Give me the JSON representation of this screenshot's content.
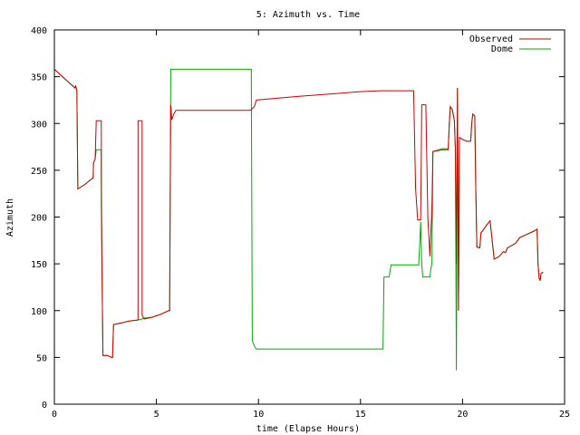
{
  "chart_data": {
    "type": "line",
    "title": "5: Azimuth vs. Time",
    "xlabel": "time (Elapse Hours)",
    "ylabel": "Azimuth",
    "xlim": [
      0,
      25
    ],
    "ylim": [
      0,
      400
    ],
    "xticks": [
      0,
      5,
      10,
      15,
      20,
      25
    ],
    "yticks": [
      0,
      50,
      100,
      150,
      200,
      250,
      300,
      350,
      400
    ],
    "xtick_labels": [
      "0",
      "5",
      "10",
      "15",
      "20",
      "25"
    ],
    "ytick_labels": [
      "0",
      "50",
      "100",
      "150",
      "200",
      "250",
      "300",
      "350",
      "400"
    ],
    "grid": false,
    "legend": "top-right",
    "series": [
      {
        "name": "Observed",
        "color": "#cc0000",
        "points": [
          [
            0.0,
            358
          ],
          [
            0.3,
            352
          ],
          [
            0.6,
            346
          ],
          [
            0.9,
            340
          ],
          [
            1.0,
            338
          ],
          [
            1.05,
            340
          ],
          [
            1.1,
            335
          ],
          [
            1.15,
            230
          ],
          [
            1.5,
            235
          ],
          [
            1.9,
            242
          ],
          [
            1.92,
            258
          ],
          [
            2.0,
            262
          ],
          [
            2.05,
            303
          ],
          [
            2.3,
            303
          ],
          [
            2.3,
            215
          ],
          [
            2.35,
            112
          ],
          [
            2.38,
            52
          ],
          [
            2.6,
            52
          ],
          [
            2.8,
            50
          ],
          [
            2.85,
            50
          ],
          [
            2.9,
            85
          ],
          [
            3.3,
            87
          ],
          [
            3.7,
            89
          ],
          [
            4.1,
            90
          ],
          [
            4.1,
            303
          ],
          [
            4.3,
            303
          ],
          [
            4.3,
            95
          ],
          [
            4.4,
            91
          ],
          [
            4.8,
            93
          ],
          [
            5.2,
            96
          ],
          [
            5.6,
            100
          ],
          [
            5.65,
            100
          ],
          [
            5.7,
            320
          ],
          [
            5.75,
            304
          ],
          [
            5.85,
            310
          ],
          [
            5.95,
            314
          ],
          [
            7.0,
            314
          ],
          [
            8.5,
            314
          ],
          [
            9.6,
            314
          ],
          [
            9.8,
            318
          ],
          [
            9.9,
            325
          ],
          [
            12.0,
            329
          ],
          [
            15.0,
            334
          ],
          [
            16.0,
            335
          ],
          [
            17.6,
            335
          ],
          [
            17.7,
            230
          ],
          [
            17.8,
            197
          ],
          [
            17.95,
            197
          ],
          [
            18.0,
            320
          ],
          [
            18.2,
            320
          ],
          [
            18.3,
            200
          ],
          [
            18.4,
            158
          ],
          [
            18.5,
            210
          ],
          [
            18.55,
            270
          ],
          [
            19.0,
            272
          ],
          [
            19.3,
            272
          ],
          [
            19.35,
            300
          ],
          [
            19.4,
            318
          ],
          [
            19.5,
            315
          ],
          [
            19.6,
            303
          ],
          [
            19.65,
            272
          ],
          [
            19.7,
            150
          ],
          [
            19.75,
            338
          ],
          [
            19.8,
            100
          ],
          [
            19.85,
            285
          ],
          [
            20.0,
            283
          ],
          [
            20.2,
            281
          ],
          [
            20.4,
            281
          ],
          [
            20.45,
            300
          ],
          [
            20.5,
            310
          ],
          [
            20.6,
            308
          ],
          [
            20.65,
            232
          ],
          [
            20.7,
            168
          ],
          [
            20.85,
            167
          ],
          [
            20.9,
            183
          ],
          [
            21.2,
            192
          ],
          [
            21.35,
            196
          ],
          [
            21.45,
            175
          ],
          [
            21.55,
            155
          ],
          [
            21.8,
            158
          ],
          [
            22.0,
            163
          ],
          [
            22.1,
            162
          ],
          [
            22.2,
            167
          ],
          [
            22.6,
            172
          ],
          [
            22.8,
            178
          ],
          [
            23.2,
            182
          ],
          [
            23.5,
            185
          ],
          [
            23.65,
            187
          ],
          [
            23.7,
            150
          ],
          [
            23.75,
            135
          ],
          [
            23.8,
            132
          ],
          [
            23.85,
            140
          ],
          [
            23.95,
            141
          ]
        ]
      },
      {
        "name": "Dome",
        "color": "#00aa00",
        "points": [
          [
            0.0,
            358
          ],
          [
            0.3,
            352
          ],
          [
            0.6,
            346
          ],
          [
            0.9,
            340
          ],
          [
            1.0,
            338
          ],
          [
            1.05,
            340
          ],
          [
            1.1,
            335
          ],
          [
            1.15,
            230
          ],
          [
            1.5,
            235
          ],
          [
            1.9,
            242
          ],
          [
            1.92,
            258
          ],
          [
            2.0,
            262
          ],
          [
            2.05,
            272
          ],
          [
            2.3,
            272
          ],
          [
            2.3,
            250
          ],
          [
            2.35,
            112
          ],
          [
            2.38,
            52
          ],
          [
            2.6,
            52
          ],
          [
            2.8,
            50
          ],
          [
            2.85,
            50
          ],
          [
            2.9,
            85
          ],
          [
            3.3,
            87
          ],
          [
            3.7,
            89
          ],
          [
            4.1,
            90
          ],
          [
            4.3,
            91
          ],
          [
            4.4,
            92
          ],
          [
            4.8,
            93
          ],
          [
            5.2,
            96
          ],
          [
            5.6,
            100
          ],
          [
            5.65,
            100
          ],
          [
            5.7,
            358
          ],
          [
            7.5,
            358
          ],
          [
            9.65,
            358
          ],
          [
            9.7,
            68
          ],
          [
            9.8,
            62
          ],
          [
            9.9,
            59
          ],
          [
            12.0,
            59
          ],
          [
            14.0,
            59
          ],
          [
            16.0,
            59
          ],
          [
            16.1,
            59
          ],
          [
            16.15,
            136
          ],
          [
            16.4,
            136
          ],
          [
            16.5,
            149
          ],
          [
            17.0,
            149
          ],
          [
            17.85,
            149
          ],
          [
            17.9,
            170
          ],
          [
            17.95,
            195
          ],
          [
            18.0,
            150
          ],
          [
            18.05,
            136
          ],
          [
            18.4,
            136
          ],
          [
            18.45,
            145
          ],
          [
            18.5,
            150
          ],
          [
            18.55,
            270
          ],
          [
            19.0,
            273
          ],
          [
            19.3,
            273
          ],
          [
            19.35,
            300
          ],
          [
            19.4,
            318
          ],
          [
            19.5,
            315
          ],
          [
            19.6,
            303
          ],
          [
            19.65,
            272
          ],
          [
            19.7,
            36
          ],
          [
            19.75,
            338
          ],
          [
            19.8,
            100
          ],
          [
            19.85,
            285
          ],
          [
            20.0,
            283
          ],
          [
            20.2,
            281
          ],
          [
            20.4,
            281
          ],
          [
            20.45,
            300
          ],
          [
            20.5,
            310
          ],
          [
            20.6,
            308
          ],
          [
            20.65,
            232
          ],
          [
            20.7,
            168
          ],
          [
            20.85,
            167
          ],
          [
            20.9,
            183
          ],
          [
            21.2,
            192
          ],
          [
            21.35,
            196
          ],
          [
            21.45,
            175
          ],
          [
            21.55,
            155
          ],
          [
            21.8,
            158
          ],
          [
            22.0,
            163
          ],
          [
            22.1,
            162
          ],
          [
            22.2,
            167
          ],
          [
            22.6,
            172
          ],
          [
            22.8,
            178
          ],
          [
            23.2,
            182
          ],
          [
            23.5,
            185
          ],
          [
            23.65,
            187
          ],
          [
            23.7,
            150
          ],
          [
            23.75,
            135
          ],
          [
            23.8,
            132
          ],
          [
            23.85,
            140
          ],
          [
            23.95,
            141
          ]
        ]
      }
    ]
  }
}
